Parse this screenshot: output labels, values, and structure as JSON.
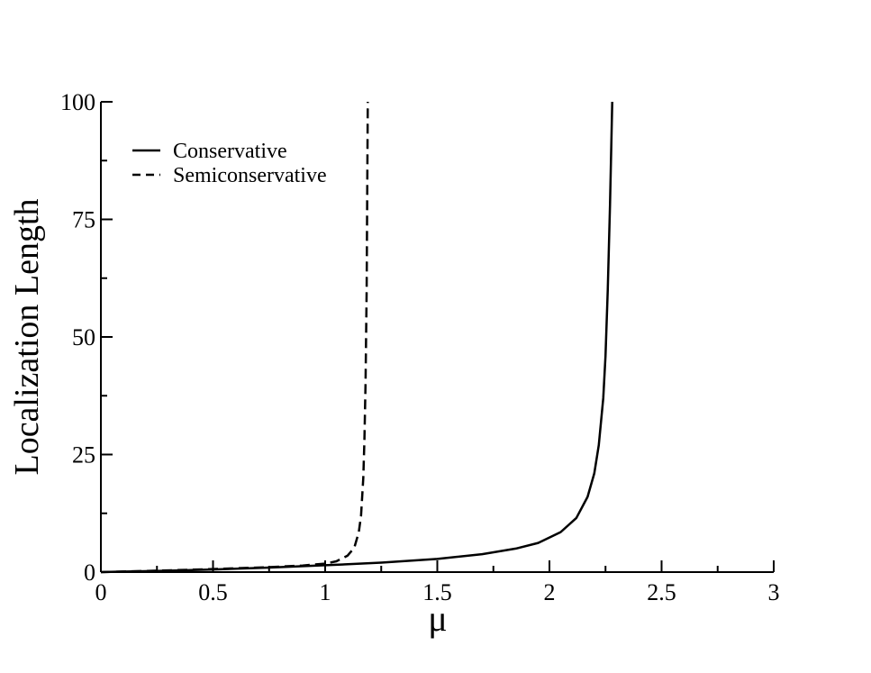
{
  "chart_data": {
    "type": "line",
    "title": "",
    "xlabel": "μ",
    "ylabel": "Localization Length",
    "xlim": [
      0,
      3
    ],
    "ylim": [
      0,
      100
    ],
    "x_ticks": [
      0,
      0.5,
      1,
      1.5,
      2,
      2.5,
      3
    ],
    "x_tick_labels": [
      "0",
      "0.5",
      "1",
      "1.5",
      "2",
      "2.5",
      "3"
    ],
    "y_ticks": [
      0,
      25,
      50,
      75,
      100
    ],
    "y_tick_labels": [
      "0",
      "25",
      "50",
      "75",
      "100"
    ],
    "legend_position": "top-left",
    "grid": false,
    "series": [
      {
        "name": "Conservative",
        "style": "solid",
        "color": "#000000",
        "x": [
          0,
          0.25,
          0.5,
          0.75,
          1.0,
          1.25,
          1.5,
          1.7,
          1.85,
          1.95,
          2.05,
          2.12,
          2.17,
          2.2,
          2.22,
          2.24,
          2.25,
          2.26,
          2.27,
          2.28
        ],
        "y": [
          0,
          0.25,
          0.55,
          0.95,
          1.45,
          2.0,
          2.8,
          3.8,
          5.0,
          6.2,
          8.5,
          11.5,
          16,
          21,
          27,
          37,
          46,
          60,
          78,
          100
        ]
      },
      {
        "name": "Semiconservative",
        "style": "dashed",
        "color": "#000000",
        "x": [
          0,
          0.25,
          0.5,
          0.75,
          0.9,
          1.0,
          1.05,
          1.1,
          1.13,
          1.15,
          1.16,
          1.17,
          1.175,
          1.18,
          1.185,
          1.19
        ],
        "y": [
          0,
          0.3,
          0.65,
          1.05,
          1.4,
          1.8,
          2.3,
          3.5,
          5.2,
          8.5,
          12,
          20,
          28,
          40,
          60,
          100
        ]
      }
    ]
  }
}
